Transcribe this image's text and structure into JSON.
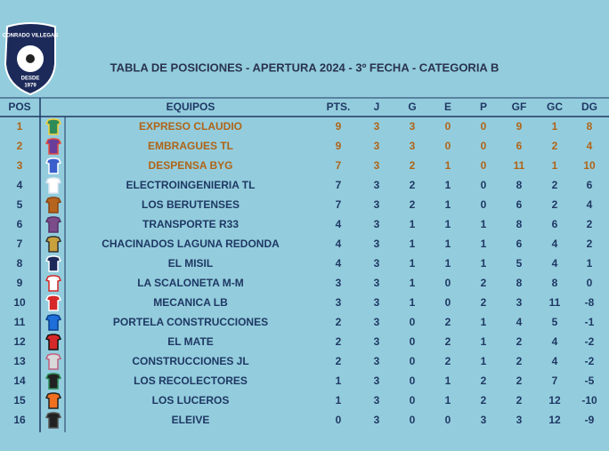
{
  "logo": {
    "name": "CONRADO VILLEGAS",
    "since": "DESDE",
    "year": "1979"
  },
  "header": {
    "title": "TABLA DE POSICIONES - APERTURA 2024 - 3º FECHA - CATEGORIA B"
  },
  "table": {
    "columns": [
      "POS",
      "EQUIPOS",
      "PTS.",
      "J",
      "G",
      "E",
      "P",
      "GF",
      "GC",
      "DG"
    ],
    "rows": [
      [
        1,
        "EXPRESO CLAUDIO",
        9,
        3,
        3,
        0,
        0,
        9,
        1,
        8
      ],
      [
        2,
        "EMBRAGUES TL",
        9,
        3,
        3,
        0,
        0,
        6,
        2,
        4
      ],
      [
        3,
        "DESPENSA BYG",
        7,
        3,
        2,
        1,
        0,
        11,
        1,
        10
      ],
      [
        4,
        "ELECTROINGENIERIA TL",
        7,
        3,
        2,
        1,
        0,
        8,
        2,
        6
      ],
      [
        5,
        "LOS BERUTENSES",
        7,
        3,
        2,
        1,
        0,
        6,
        2,
        4
      ],
      [
        6,
        "TRANSPORTE R33",
        4,
        3,
        1,
        1,
        1,
        8,
        6,
        2
      ],
      [
        7,
        "CHACINADOS LAGUNA REDONDA",
        4,
        3,
        1,
        1,
        1,
        6,
        4,
        2
      ],
      [
        8,
        "EL MISIL",
        4,
        3,
        1,
        1,
        1,
        5,
        4,
        1
      ],
      [
        9,
        "LA SCALONETA M-M",
        3,
        3,
        1,
        0,
        2,
        8,
        8,
        0
      ],
      [
        10,
        "MECANICA LB",
        3,
        3,
        1,
        0,
        2,
        3,
        11,
        -8
      ],
      [
        11,
        "PORTELA CONSTRUCCIONES",
        2,
        3,
        0,
        2,
        1,
        4,
        5,
        -1
      ],
      [
        12,
        "EL MATE",
        2,
        3,
        0,
        2,
        1,
        2,
        4,
        -2
      ],
      [
        13,
        "CONSTRUCCIONES JL",
        2,
        3,
        0,
        2,
        1,
        2,
        4,
        -2
      ],
      [
        14,
        "LOS RECOLECTORES",
        1,
        3,
        0,
        1,
        2,
        2,
        7,
        -5
      ],
      [
        15,
        "LOS LUCEROS",
        1,
        3,
        0,
        1,
        2,
        2,
        12,
        -10
      ],
      [
        16,
        "ELEIVE",
        0,
        3,
        0,
        0,
        3,
        3,
        12,
        -9
      ]
    ]
  }
}
